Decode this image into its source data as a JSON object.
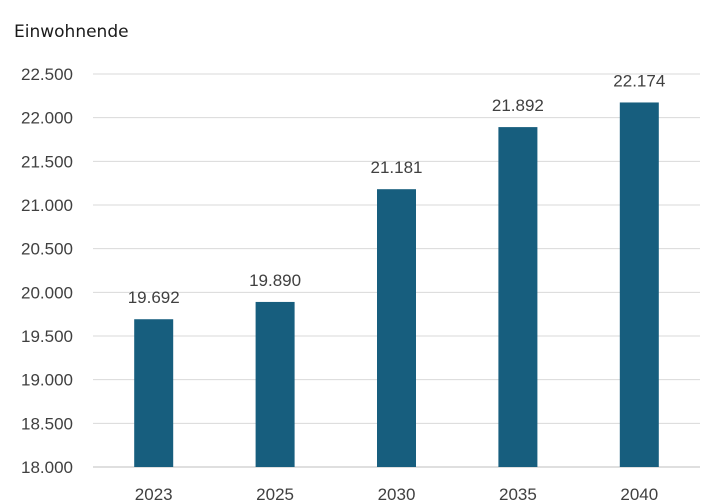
{
  "chart_data": {
    "type": "bar",
    "ylabel": "Einwohnende",
    "categories": [
      "2023",
      "2025",
      "2030",
      "2035",
      "2040"
    ],
    "values": [
      19692,
      19890,
      21181,
      21892,
      22174
    ],
    "value_labels": [
      "19.692",
      "19.890",
      "21.181",
      "21.892",
      "22.174"
    ],
    "ylim": [
      18000,
      22500
    ],
    "yticks": [
      18000,
      18500,
      19000,
      19500,
      20000,
      20500,
      21000,
      21500,
      22000,
      22500
    ],
    "ytick_labels": [
      "18.000",
      "18.500",
      "19.000",
      "19.500",
      "20.000",
      "20.500",
      "21.000",
      "21.500",
      "22.000",
      "22.500"
    ],
    "grid": true,
    "bar_color": "#175e7e"
  }
}
